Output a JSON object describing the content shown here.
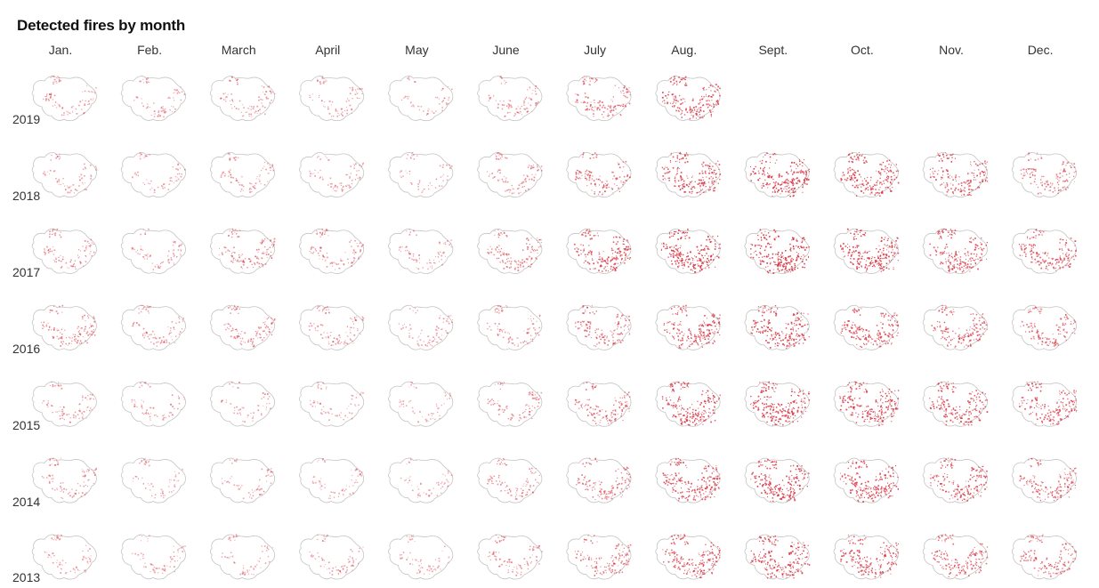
{
  "title": "Detected fires by month",
  "chart_data": {
    "type": "heatmap",
    "title": "Detected fires by month",
    "columns": [
      "Jan.",
      "Feb.",
      "March",
      "April",
      "May",
      "June",
      "July",
      "Aug.",
      "Sept.",
      "Oct.",
      "Nov.",
      "Dec."
    ],
    "rows": [
      "2019",
      "2018",
      "2017",
      "2016",
      "2015",
      "2014",
      "2013"
    ],
    "intensity": [
      [
        0.25,
        0.2,
        0.28,
        0.22,
        0.12,
        0.28,
        0.5,
        0.78,
        null,
        null,
        null,
        null
      ],
      [
        0.18,
        0.14,
        0.26,
        0.22,
        0.12,
        0.3,
        0.52,
        0.8,
        0.95,
        0.85,
        0.72,
        0.48
      ],
      [
        0.3,
        0.2,
        0.4,
        0.3,
        0.2,
        0.45,
        0.75,
        0.95,
        1.0,
        0.92,
        0.8,
        0.7
      ],
      [
        0.42,
        0.28,
        0.35,
        0.3,
        0.2,
        0.3,
        0.52,
        0.78,
        0.9,
        0.78,
        0.62,
        0.5
      ],
      [
        0.25,
        0.18,
        0.15,
        0.15,
        0.12,
        0.28,
        0.5,
        0.85,
        0.9,
        0.9,
        0.8,
        0.72
      ],
      [
        0.28,
        0.15,
        0.15,
        0.15,
        0.12,
        0.3,
        0.48,
        0.82,
        0.9,
        0.85,
        0.72,
        0.6
      ],
      [
        0.2,
        0.15,
        0.15,
        0.2,
        0.14,
        0.28,
        0.5,
        0.75,
        0.85,
        0.78,
        0.65,
        0.55
      ]
    ],
    "legend": "none",
    "grid": false,
    "colors": {
      "fire": "#d73341",
      "outline": "#c4c4c4",
      "label": "#333333"
    }
  }
}
